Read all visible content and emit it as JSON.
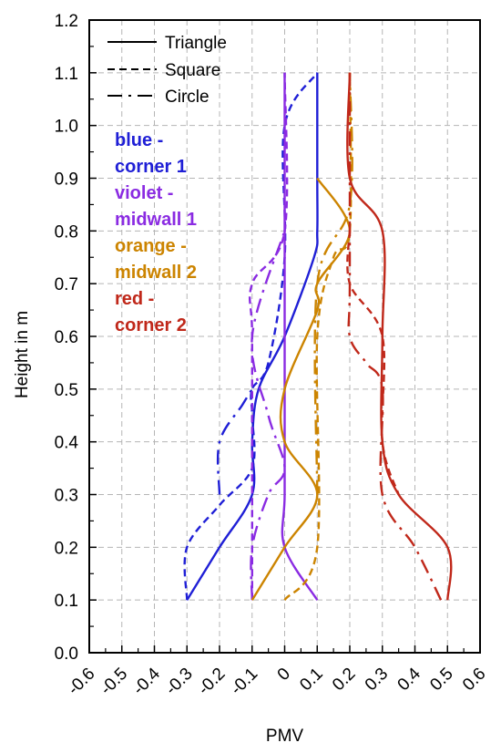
{
  "chart_data": {
    "type": "line",
    "xlabel": "PMV",
    "ylabel": "Height in m",
    "xlim": [
      -0.6,
      0.6
    ],
    "ylim": [
      0.0,
      1.2
    ],
    "x_ticks": [
      "-0.6",
      "-0.5",
      "-0.4",
      "-0.3",
      "-0.2",
      "-0.1",
      "0",
      "0.1",
      "0.2",
      "0.3",
      "0.4",
      "0.5",
      "0.6"
    ],
    "y_ticks": [
      "0.0",
      "0.1",
      "0.2",
      "0.3",
      "0.4",
      "0.5",
      "0.6",
      "0.7",
      "0.8",
      "0.9",
      "1.0",
      "1.1",
      "1.2"
    ],
    "grid": true,
    "legend_position": "top-left",
    "legend": [
      {
        "label": "Triangle",
        "style": "solid"
      },
      {
        "label": "Square",
        "style": "dashed"
      },
      {
        "label": "Circle",
        "style": "dashdot"
      }
    ],
    "color_notes": [
      {
        "lines": [
          "blue -",
          "corner 1"
        ],
        "color": "#1f1fd6"
      },
      {
        "lines": [
          "violet -",
          "midwall 1"
        ],
        "color": "#8a2be2"
      },
      {
        "lines": [
          "orange -",
          "midwall 2"
        ],
        "color": "#cc8400"
      },
      {
        "lines": [
          "red -",
          "corner 2"
        ],
        "color": "#c0281a"
      }
    ],
    "series": [
      {
        "location": "corner 1",
        "shape": "Triangle",
        "style": "solid",
        "color": "#1f1fd6",
        "points": [
          [
            -0.3,
            0.1
          ],
          [
            -0.2,
            0.2
          ],
          [
            -0.1,
            0.3
          ],
          [
            -0.1,
            0.4
          ],
          [
            -0.08,
            0.5
          ],
          [
            0.0,
            0.6
          ],
          [
            0.09,
            0.75
          ],
          [
            0.1,
            0.8
          ],
          [
            0.1,
            0.9
          ],
          [
            0.1,
            1.1
          ]
        ]
      },
      {
        "location": "corner 1",
        "shape": "Square",
        "style": "dashed",
        "color": "#1f1fd6",
        "points": [
          [
            -0.3,
            0.1
          ],
          [
            -0.3,
            0.2
          ],
          [
            -0.2,
            0.28
          ],
          [
            -0.1,
            0.35
          ],
          [
            -0.1,
            0.45
          ],
          [
            -0.1,
            0.5
          ],
          [
            -0.05,
            0.55
          ],
          [
            0.0,
            0.75
          ],
          [
            0.0,
            1.0
          ],
          [
            0.1,
            1.1
          ]
        ]
      },
      {
        "location": "corner 1",
        "shape": "Circle",
        "style": "dashdot",
        "color": "#1f1fd6",
        "points": [
          [
            -0.2,
            0.3
          ],
          [
            -0.2,
            0.4
          ],
          [
            -0.13,
            0.47
          ],
          [
            -0.1,
            0.5
          ]
        ]
      },
      {
        "location": "midwall 1",
        "shape": "Triangle",
        "style": "solid",
        "color": "#8a2be2",
        "points": [
          [
            0.1,
            0.1
          ],
          [
            0.0,
            0.2
          ],
          [
            0.0,
            0.3
          ],
          [
            0.0,
            0.5
          ],
          [
            0.0,
            1.1
          ]
        ]
      },
      {
        "location": "midwall 1",
        "shape": "Square",
        "style": "dashed",
        "color": "#8a2be2",
        "points": [
          [
            -0.1,
            0.1
          ],
          [
            -0.1,
            0.3
          ],
          [
            -0.1,
            0.6
          ],
          [
            -0.1,
            0.7
          ],
          [
            0.0,
            0.8
          ],
          [
            0.0,
            1.1
          ]
        ]
      },
      {
        "location": "midwall 1",
        "shape": "Circle",
        "style": "dashdot",
        "color": "#8a2be2",
        "points": [
          [
            -0.1,
            0.1
          ],
          [
            -0.1,
            0.2
          ],
          [
            -0.05,
            0.3
          ],
          [
            0.0,
            0.35
          ],
          [
            -0.05,
            0.45
          ],
          [
            -0.1,
            0.6
          ],
          [
            0.0,
            0.8
          ]
        ]
      },
      {
        "location": "midwall 2",
        "shape": "Triangle",
        "style": "solid",
        "color": "#cc8400",
        "points": [
          [
            -0.1,
            0.1
          ],
          [
            0.0,
            0.2
          ],
          [
            0.1,
            0.3
          ],
          [
            0.0,
            0.4
          ],
          [
            0.0,
            0.5
          ],
          [
            0.1,
            0.65
          ],
          [
            0.1,
            0.7
          ],
          [
            0.2,
            0.8
          ],
          [
            0.1,
            0.9
          ]
        ]
      },
      {
        "location": "midwall 2",
        "shape": "Square",
        "style": "dashed",
        "color": "#cc8400",
        "points": [
          [
            0.0,
            0.1
          ],
          [
            0.1,
            0.2
          ],
          [
            0.1,
            0.6
          ],
          [
            0.15,
            0.75
          ],
          [
            0.2,
            0.8
          ],
          [
            0.2,
            1.1
          ]
        ]
      },
      {
        "location": "midwall 2",
        "shape": "Circle",
        "style": "dashdot",
        "color": "#cc8400",
        "points": [
          [
            0.1,
            0.3
          ],
          [
            0.1,
            0.7
          ],
          [
            0.2,
            0.85
          ],
          [
            0.2,
            1.1
          ]
        ]
      },
      {
        "location": "corner 2",
        "shape": "Triangle",
        "style": "solid",
        "color": "#c0281a",
        "points": [
          [
            0.5,
            0.1
          ],
          [
            0.5,
            0.2
          ],
          [
            0.35,
            0.3
          ],
          [
            0.3,
            0.4
          ],
          [
            0.3,
            0.6
          ],
          [
            0.3,
            0.8
          ],
          [
            0.2,
            0.9
          ],
          [
            0.2,
            1.1
          ]
        ]
      },
      {
        "location": "corner 2",
        "shape": "Square",
        "style": "dashed",
        "color": "#c0281a",
        "points": [
          [
            0.2,
            0.8
          ],
          [
            0.2,
            0.7
          ],
          [
            0.3,
            0.6
          ],
          [
            0.3,
            0.4
          ],
          [
            0.35,
            0.3
          ]
        ]
      },
      {
        "location": "corner 2",
        "shape": "Circle",
        "style": "dashdot",
        "color": "#c0281a",
        "points": [
          [
            0.48,
            0.1
          ],
          [
            0.4,
            0.2
          ],
          [
            0.3,
            0.3
          ],
          [
            0.3,
            0.5
          ],
          [
            0.25,
            0.55
          ],
          [
            0.2,
            0.6
          ],
          [
            0.2,
            0.7
          ],
          [
            0.2,
            1.1
          ]
        ]
      }
    ]
  }
}
